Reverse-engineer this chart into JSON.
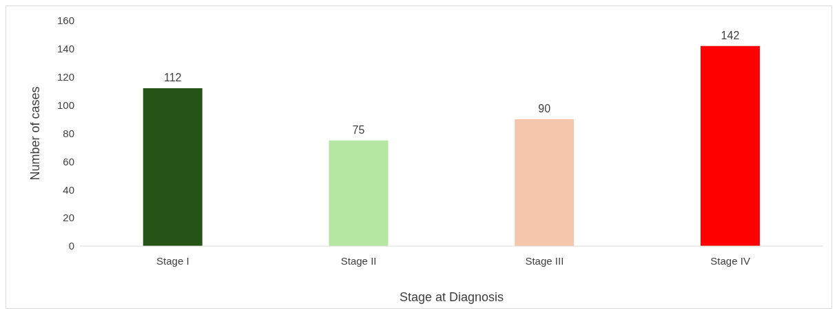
{
  "chart_data": {
    "type": "bar",
    "xlabel": "Stage at Diagnosis",
    "ylabel": "Number of cases",
    "categories": [
      "Stage I",
      "Stage II",
      "Stage III",
      "Stage IV"
    ],
    "values": [
      112,
      75,
      90,
      142
    ],
    "colors": [
      "#265418",
      "#b5e6a2",
      "#f5c6ab",
      "#ff0000"
    ],
    "ylim": [
      0,
      160
    ],
    "yticks": [
      0,
      20,
      40,
      60,
      80,
      100,
      120,
      140,
      160
    ],
    "grid": false,
    "data_labels": true,
    "legend": false
  }
}
